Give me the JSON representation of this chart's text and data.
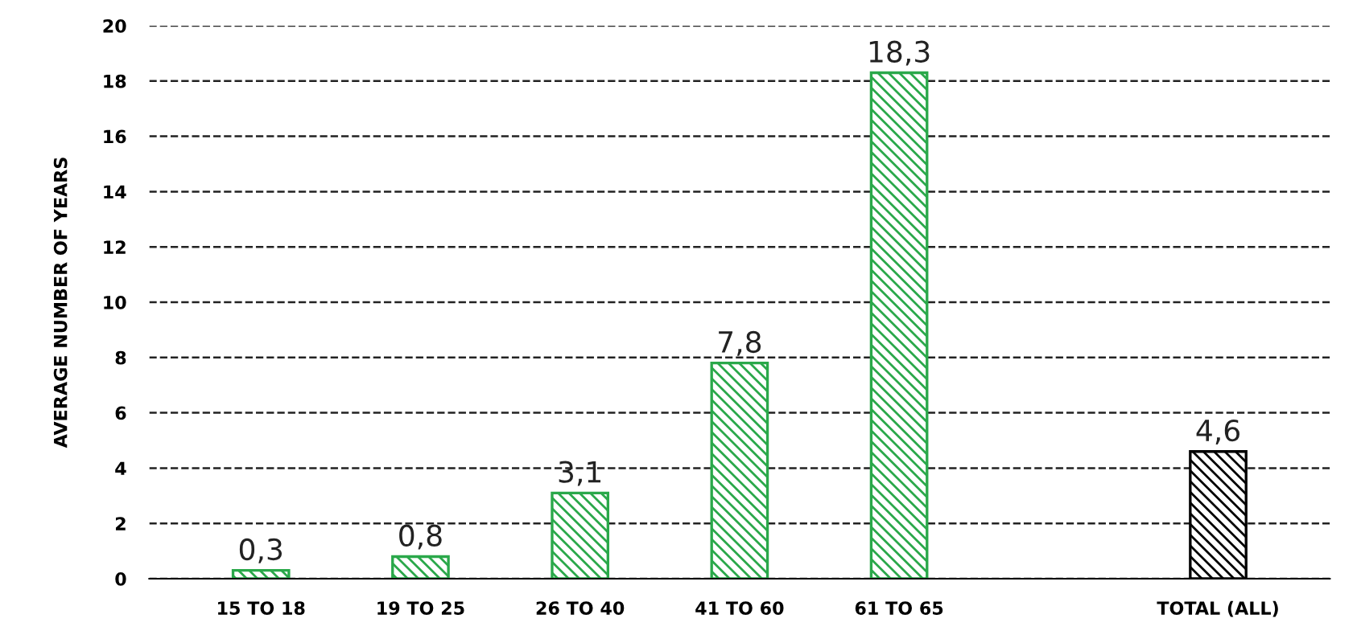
{
  "chart_data": {
    "type": "bar",
    "ylabel": "AVERAGE NUMBER OF YEARS",
    "categories": [
      "15 TO 18",
      "19 TO 25",
      "26 TO 40",
      "41 TO 60",
      "61 TO 65",
      null,
      "TOTAL (ALL)"
    ],
    "values": [
      0.3,
      0.8,
      3.1,
      7.8,
      18.3,
      null,
      4.6
    ],
    "value_labels": [
      "0,3",
      "0,8",
      "3,1",
      "7,8",
      "18,3",
      null,
      "4,6"
    ],
    "colors": [
      "#2aa84a",
      "#2aa84a",
      "#2aa84a",
      "#2aa84a",
      "#2aa84a",
      null,
      "#000000"
    ],
    "ylim": [
      0,
      20
    ],
    "yticks": [
      0,
      2,
      4,
      6,
      8,
      10,
      12,
      14,
      16,
      18,
      20
    ],
    "grid": "y",
    "line_style": "dashed"
  }
}
